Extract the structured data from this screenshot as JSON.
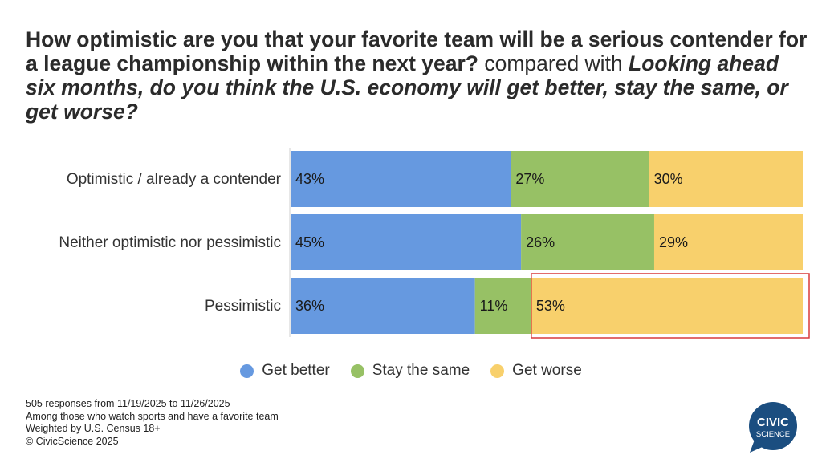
{
  "title": {
    "part1": "How optimistic are you that your favorite team will be a serious contender for a league championship within the next year?",
    "part2": " compared with ",
    "part3": "Looking ahead six months, do you think the U.S. economy will get better, stay the same, or get worse?"
  },
  "chart_data": {
    "type": "bar",
    "orientation": "horizontal",
    "stacked": true,
    "categories": [
      "Optimistic / already a contender",
      "Neither optimistic nor pessimistic",
      "Pessimistic"
    ],
    "series": [
      {
        "name": "Get better",
        "values": [
          43,
          45,
          36
        ],
        "color": "#6699e0"
      },
      {
        "name": "Stay the same",
        "values": [
          27,
          26,
          11
        ],
        "color": "#97c165"
      },
      {
        "name": "Get worse",
        "values": [
          30,
          29,
          53
        ],
        "color": "#f8d06c"
      }
    ],
    "value_suffix": "%",
    "xlim": [
      0,
      100
    ],
    "highlight": {
      "category": "Pessimistic",
      "series": "Get worse",
      "color": "#d93a3a"
    },
    "legend_position": "bottom"
  },
  "footer": {
    "lines": [
      "505 responses from 11/19/2025 to 11/26/2025",
      "Among those who watch sports and have a favorite team",
      "Weighted by U.S. Census 18+",
      "© CivicScience 2025"
    ]
  },
  "logo": {
    "line1": "CIVIC",
    "line2": "SCIENCE",
    "color": "#1b4e80"
  }
}
